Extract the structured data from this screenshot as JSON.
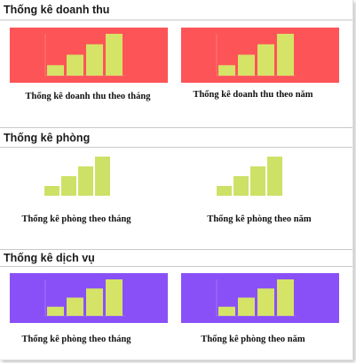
{
  "colors": {
    "red_bg": "#fd5457",
    "purple_bg": "#8a50f7",
    "bar_fill": "#d5e367",
    "bar_fill_green": "#cde167"
  },
  "sections": [
    {
      "title": "Thống kê doanh thu",
      "cards": [
        {
          "caption": "Thống kê doanh thu theo tháng"
        },
        {
          "caption": "Thống kê doanh thu theo năm"
        }
      ]
    },
    {
      "title": "Thống kê phòng",
      "cards": [
        {
          "caption": "Thống kê phòng theo tháng"
        },
        {
          "caption": "Thống kê phòng theo năm"
        }
      ]
    },
    {
      "title": "Thống kê dịch vụ",
      "cards": [
        {
          "caption": "Thống kê phòng theo tháng"
        },
        {
          "caption": "Thống kê phòng theo năm"
        }
      ]
    }
  ],
  "chart_data": [
    {
      "type": "bar",
      "values": [
        1,
        2,
        3,
        4
      ]
    },
    {
      "type": "bar",
      "values": [
        1,
        2,
        3,
        4
      ]
    },
    {
      "type": "bar",
      "values": [
        1,
        2,
        3,
        4
      ]
    },
    {
      "type": "bar",
      "values": [
        1,
        2,
        3,
        4
      ]
    },
    {
      "type": "bar",
      "values": [
        1,
        2,
        3,
        4
      ]
    },
    {
      "type": "bar",
      "values": [
        1,
        2,
        3,
        4
      ]
    }
  ]
}
